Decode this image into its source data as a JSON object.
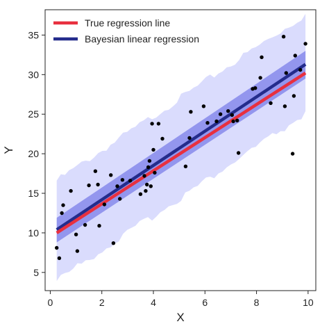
{
  "chart_data": {
    "type": "scatter",
    "xlabel": "X",
    "ylabel": "Y",
    "xlim": [
      -0.2,
      10.3
    ],
    "ylim": [
      2.7,
      38.2
    ],
    "xticks": [
      "0",
      "2",
      "4",
      "6",
      "8",
      "10"
    ],
    "xtick_values": [
      0,
      2,
      4,
      6,
      8,
      10
    ],
    "yticks": [
      "5",
      "10",
      "15",
      "20",
      "25",
      "30",
      "35"
    ],
    "ytick_values": [
      5,
      10,
      15,
      20,
      25,
      30,
      35
    ],
    "grid": false,
    "legend_position": "top-left",
    "legend": [
      {
        "label": "True regression line",
        "color": "#e8303f"
      },
      {
        "label": "Bayesian linear regression",
        "color": "#242c8c"
      }
    ],
    "true_line": {
      "x": [
        0.25,
        9.9
      ],
      "y": [
        10.0,
        30.2
      ],
      "color": "#e8303f"
    },
    "bayes_line": {
      "x": [
        0.25,
        9.9
      ],
      "y": [
        10.4,
        31.3
      ],
      "color": "#242c8c"
    },
    "mean_band": {
      "x": [
        0.25,
        9.9
      ],
      "lower": [
        8.8,
        29.5
      ],
      "upper": [
        11.9,
        33.0
      ],
      "color": "#7b7fe8"
    },
    "predictive_band": {
      "x": [
        0.25,
        9.9
      ],
      "lower": [
        4.0,
        25.0
      ],
      "upper": [
        16.6,
        37.6
      ],
      "color": "#dadcfd"
    },
    "points": {
      "color": "#000000",
      "x": [
        0.25,
        0.35,
        0.45,
        0.5,
        0.8,
        1.0,
        1.05,
        1.35,
        1.5,
        1.75,
        1.85,
        1.9,
        2.1,
        2.35,
        2.45,
        2.6,
        2.7,
        2.8,
        3.1,
        3.5,
        3.65,
        3.7,
        3.75,
        3.8,
        3.85,
        3.9,
        3.95,
        4.0,
        4.05,
        4.2,
        4.35,
        5.25,
        5.4,
        5.45,
        5.95,
        6.1,
        6.45,
        6.6,
        6.9,
        7.05,
        7.1,
        7.25,
        7.3,
        7.85,
        7.95,
        8.15,
        8.2,
        8.55,
        9.05,
        9.1,
        9.15,
        9.4,
        9.45,
        9.5,
        9.7,
        9.9
      ],
      "y": [
        8.1,
        6.8,
        12.5,
        13.5,
        15.3,
        9.8,
        7.7,
        11.0,
        16.0,
        17.8,
        16.1,
        10.9,
        13.6,
        17.3,
        8.7,
        15.9,
        14.3,
        16.7,
        16.6,
        14.9,
        17.2,
        15.3,
        16.1,
        18.3,
        19.1,
        15.9,
        23.8,
        20.5,
        17.6,
        23.8,
        21.9,
        18.4,
        22.0,
        25.3,
        26.0,
        23.9,
        24.1,
        25.0,
        25.4,
        24.9,
        24.1,
        24.2,
        20.1,
        28.2,
        28.3,
        29.6,
        32.2,
        26.4,
        34.8,
        26.0,
        30.2,
        20.0,
        27.3,
        32.4,
        30.6,
        33.9
      ]
    }
  }
}
